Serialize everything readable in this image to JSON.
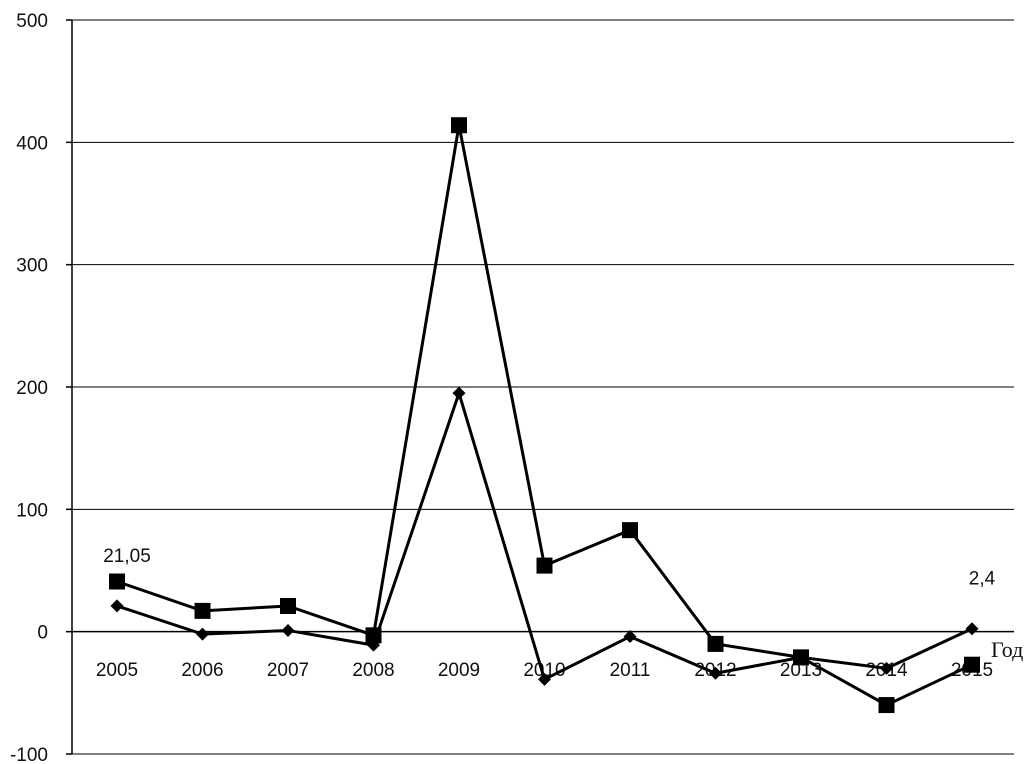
{
  "chart_data": {
    "type": "line",
    "xlabel": "Год",
    "ylabel": "",
    "title": "",
    "ylim": [
      -100,
      500
    ],
    "yticks": [
      -100,
      0,
      100,
      200,
      300,
      400,
      500
    ],
    "grid": true,
    "categories": [
      "2005",
      "2006",
      "2007",
      "2008",
      "2009",
      "2010",
      "2011",
      "2012",
      "2013",
      "2014",
      "2015"
    ],
    "series": [
      {
        "marker": "square",
        "color": "#000000",
        "values": [
          41,
          17,
          21,
          -3,
          414,
          54,
          83,
          -10,
          -21,
          -60,
          -27
        ]
      },
      {
        "marker": "diamond",
        "color": "#000000",
        "values": [
          21.05,
          -2,
          1,
          -11,
          195,
          -39,
          -4,
          -34,
          -21,
          -30,
          2.4
        ]
      }
    ],
    "annotations": [
      {
        "text": "21,05",
        "category": "2005",
        "value": 21.05
      },
      {
        "text": "2,4",
        "category": "2015",
        "value": 2.4
      }
    ]
  }
}
